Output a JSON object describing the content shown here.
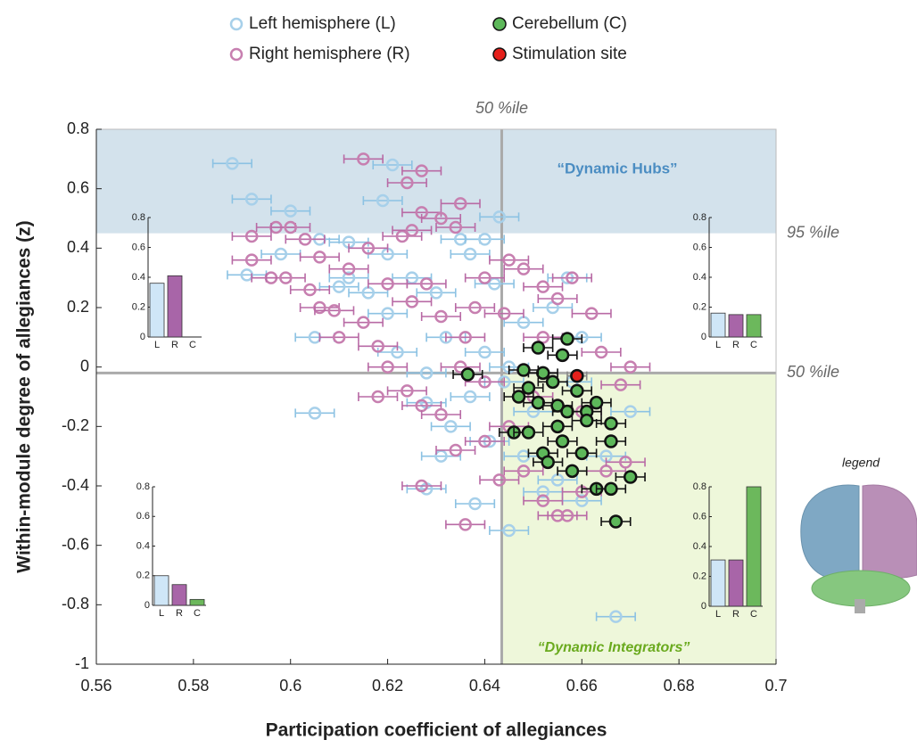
{
  "chart_data": [
    {
      "type": "scatter",
      "xlabel": "Participation coefficient of allegiances",
      "ylabel": "Within-module degree of allegiances (z)",
      "xlim": [
        0.56,
        0.7
      ],
      "ylim": [
        -1,
        0.8
      ],
      "xticks": [
        0.56,
        0.58,
        0.6,
        0.62,
        0.64,
        0.66,
        0.68,
        0.7
      ],
      "yticks": [
        -1,
        -0.8,
        -0.6,
        -0.4,
        -0.2,
        0,
        0.2,
        0.4,
        0.6,
        0.8
      ],
      "vline": {
        "value": 0.6435,
        "label": "50 %ile"
      },
      "hlines": [
        {
          "value": 0.45,
          "label": "95 %ile"
        },
        {
          "value": -0.02,
          "label": "50 %ile"
        }
      ],
      "regions": [
        {
          "label": "“Dynamic Hubs”",
          "color": "#d3e2ec"
        },
        {
          "label": "“Dynamic Integrators”",
          "color": "#eef7da"
        }
      ],
      "brain_label": "legend",
      "series": [
        {
          "name": "Left hemisphere (L)",
          "color": "#a7d0ea",
          "marker": "ring",
          "errcolor": "#8cc2e3",
          "xerr": 0.004,
          "x": [
            0.588,
            0.592,
            0.6,
            0.621,
            0.619,
            0.643,
            0.591,
            0.605,
            0.605,
            0.628,
            0.645,
            0.667,
            0.638,
            0.606,
            0.612,
            0.635,
            0.64,
            0.62,
            0.625,
            0.63,
            0.62,
            0.632,
            0.64,
            0.645,
            0.637,
            0.628,
            0.633,
            0.641,
            0.648,
            0.655,
            0.66,
            0.652,
            0.665,
            0.657,
            0.654,
            0.66,
            0.648,
            0.612,
            0.616,
            0.622,
            0.628,
            0.631,
            0.65,
            0.644,
            0.658,
            0.67,
            0.598,
            0.61,
            0.637,
            0.642
          ],
          "y": [
            0.685,
            0.565,
            0.525,
            0.68,
            0.56,
            0.505,
            0.31,
            0.1,
            -0.155,
            -0.41,
            -0.55,
            -0.84,
            -0.46,
            0.43,
            0.42,
            0.43,
            0.43,
            0.38,
            0.3,
            0.25,
            0.18,
            0.1,
            0.05,
            0,
            -0.1,
            -0.12,
            -0.2,
            -0.25,
            -0.3,
            -0.38,
            -0.45,
            -0.42,
            -0.3,
            0.3,
            0.2,
            0.1,
            0.15,
            0.3,
            0.25,
            0.05,
            -0.02,
            -0.3,
            -0.15,
            -0.05,
            -0.05,
            -0.15,
            0.38,
            0.27,
            0.38,
            0.28
          ]
        },
        {
          "name": "Right hemisphere (R)",
          "color": "#c77fb0",
          "marker": "ring",
          "errcolor": "#b86aa5",
          "xerr": 0.004,
          "x": [
            0.615,
            0.627,
            0.624,
            0.635,
            0.592,
            0.597,
            0.6,
            0.603,
            0.592,
            0.596,
            0.599,
            0.604,
            0.606,
            0.609,
            0.612,
            0.616,
            0.623,
            0.625,
            0.627,
            0.631,
            0.634,
            0.62,
            0.625,
            0.628,
            0.631,
            0.615,
            0.618,
            0.62,
            0.624,
            0.627,
            0.631,
            0.636,
            0.638,
            0.64,
            0.645,
            0.648,
            0.652,
            0.655,
            0.658,
            0.662,
            0.664,
            0.668,
            0.67,
            0.627,
            0.634,
            0.64,
            0.643,
            0.648,
            0.652,
            0.655,
            0.66,
            0.665,
            0.669,
            0.636,
            0.657,
            0.645,
            0.65,
            0.66,
            0.61,
            0.606,
            0.635,
            0.64,
            0.618,
            0.652,
            0.644
          ],
          "y": [
            0.7,
            0.66,
            0.62,
            0.55,
            0.44,
            0.47,
            0.47,
            0.43,
            0.36,
            0.3,
            0.3,
            0.26,
            0.2,
            0.19,
            0.33,
            0.4,
            0.44,
            0.46,
            0.52,
            0.5,
            0.47,
            0.28,
            0.22,
            0.28,
            0.17,
            0.15,
            0.07,
            0,
            -0.08,
            -0.13,
            -0.16,
            0.1,
            0.2,
            0.3,
            0.36,
            0.33,
            0.27,
            0.23,
            0.3,
            0.18,
            0.05,
            -0.06,
            0,
            -0.4,
            -0.28,
            -0.25,
            -0.38,
            -0.35,
            -0.45,
            -0.5,
            -0.42,
            -0.35,
            -0.32,
            -0.53,
            -0.5,
            -0.2,
            -0.1,
            -0.15,
            0.1,
            0.37,
            0,
            -0.05,
            -0.1,
            0.1,
            0.18
          ]
        },
        {
          "name": "Cerebellum (C)",
          "color": "#5db85a",
          "marker": "filled",
          "errcolor": "#111",
          "xerr": 0.003,
          "x": [
            0.6365,
            0.651,
            0.657,
            0.656,
            0.649,
            0.652,
            0.648,
            0.647,
            0.651,
            0.654,
            0.655,
            0.657,
            0.659,
            0.661,
            0.663,
            0.666,
            0.646,
            0.649,
            0.652,
            0.653,
            0.655,
            0.656,
            0.66,
            0.658,
            0.666,
            0.663,
            0.666,
            0.67,
            0.667,
            0.661
          ],
          "y": [
            -0.025,
            0.065,
            0.095,
            0.04,
            -0.07,
            -0.02,
            -0.01,
            -0.1,
            -0.12,
            -0.05,
            -0.13,
            -0.15,
            -0.08,
            -0.15,
            -0.12,
            -0.19,
            -0.22,
            -0.22,
            -0.29,
            -0.32,
            -0.2,
            -0.25,
            -0.29,
            -0.35,
            -0.25,
            -0.41,
            -0.41,
            -0.37,
            -0.52,
            -0.18
          ]
        },
        {
          "name": "Stimulation site",
          "color": "#e5201b",
          "marker": "filled",
          "errcolor": "#888",
          "xerr": 0.002,
          "x": [
            0.659
          ],
          "y": [
            -0.03
          ]
        }
      ]
    },
    {
      "type": "bar",
      "categories": [
        "L",
        "R",
        "C"
      ],
      "values": [
        0.36,
        0.41,
        0
      ],
      "colors": [
        "#cfe6f7",
        "#a865a8",
        "#6cb85c"
      ],
      "ylim": [
        0,
        0.8
      ],
      "yticks": [
        0,
        0.2,
        0.4,
        0.6,
        0.8
      ]
    },
    {
      "type": "bar",
      "categories": [
        "L",
        "R",
        "C"
      ],
      "values": [
        0.16,
        0.15,
        0.15
      ],
      "colors": [
        "#cfe6f7",
        "#a865a8",
        "#6cb85c"
      ],
      "ylim": [
        0,
        0.8
      ],
      "yticks": [
        0,
        0.2,
        0.4,
        0.6,
        0.8
      ]
    },
    {
      "type": "bar",
      "categories": [
        "L",
        "R",
        "C"
      ],
      "values": [
        0.2,
        0.14,
        0.04
      ],
      "colors": [
        "#cfe6f7",
        "#a865a8",
        "#6cb85c"
      ],
      "ylim": [
        0,
        0.8
      ],
      "yticks": [
        0,
        0.2,
        0.4,
        0.6,
        0.8
      ]
    },
    {
      "type": "bar",
      "categories": [
        "L",
        "R",
        "C"
      ],
      "values": [
        0.31,
        0.31,
        0.8
      ],
      "colors": [
        "#cfe6f7",
        "#a865a8",
        "#6cb85c"
      ],
      "ylim": [
        0,
        0.8
      ],
      "yticks": [
        0,
        0.2,
        0.4,
        0.6,
        0.8
      ]
    }
  ]
}
